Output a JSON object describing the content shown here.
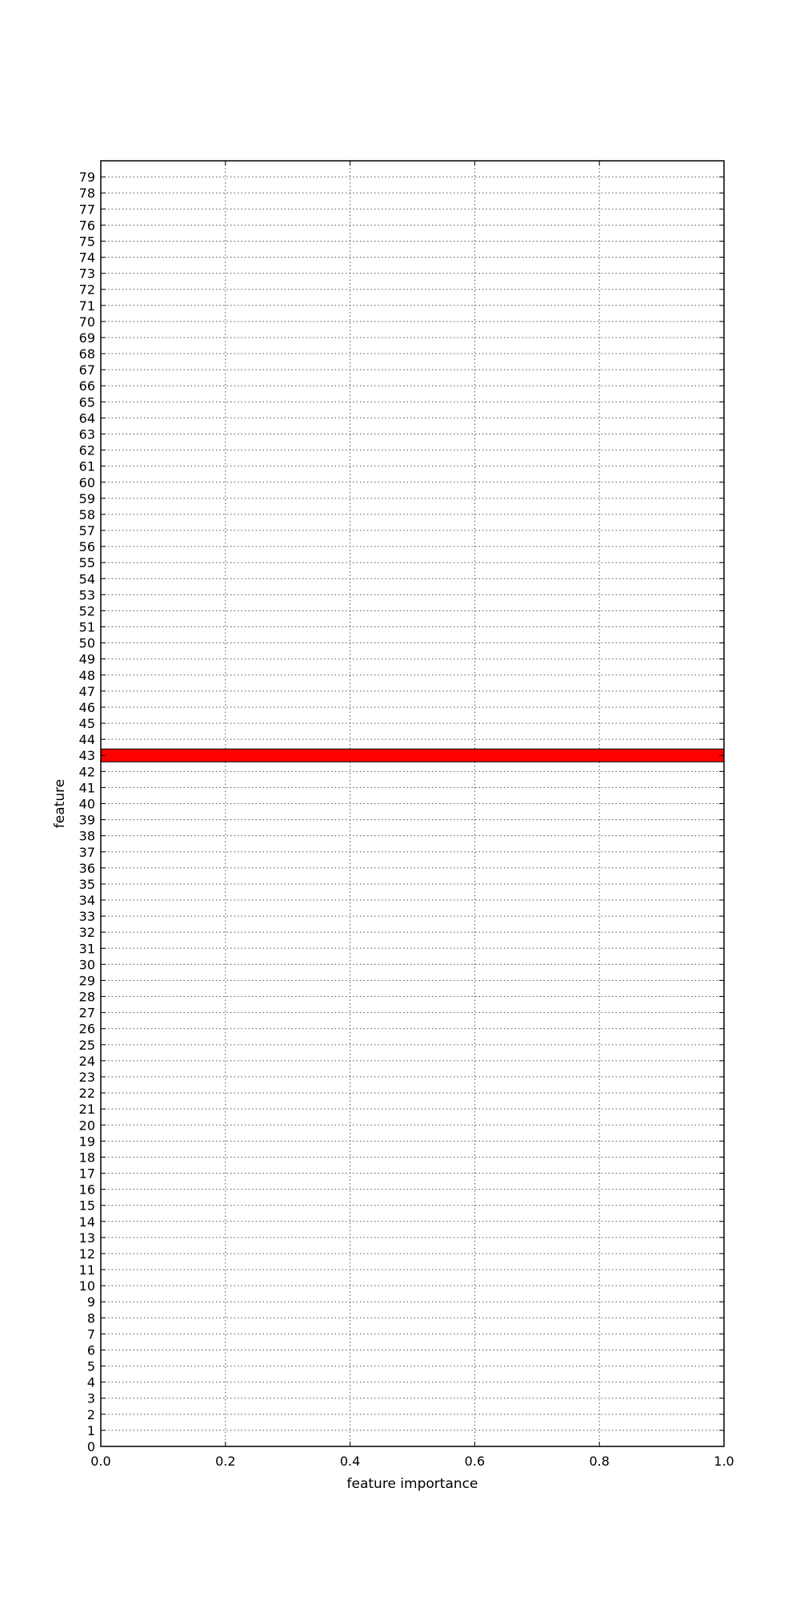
{
  "chart_data": {
    "type": "bar",
    "orientation": "horizontal",
    "xlabel": "feature importance",
    "ylabel": "feature",
    "xlim": [
      0.0,
      1.0
    ],
    "ylim": [
      0,
      80
    ],
    "xticks": [
      "0.0",
      "0.2",
      "0.4",
      "0.6",
      "0.8",
      "1.0"
    ],
    "xtick_values": [
      0.0,
      0.2,
      0.4,
      0.6,
      0.8,
      1.0
    ],
    "categories": [
      "0",
      "1",
      "2",
      "3",
      "4",
      "5",
      "6",
      "7",
      "8",
      "9",
      "10",
      "11",
      "12",
      "13",
      "14",
      "15",
      "16",
      "17",
      "18",
      "19",
      "20",
      "21",
      "22",
      "23",
      "24",
      "25",
      "26",
      "27",
      "28",
      "29",
      "30",
      "31",
      "32",
      "33",
      "34",
      "35",
      "36",
      "37",
      "38",
      "39",
      "40",
      "41",
      "42",
      "43",
      "44",
      "45",
      "46",
      "47",
      "48",
      "49",
      "50",
      "51",
      "52",
      "53",
      "54",
      "55",
      "56",
      "57",
      "58",
      "59",
      "60",
      "61",
      "62",
      "63",
      "64",
      "65",
      "66",
      "67",
      "68",
      "69",
      "70",
      "71",
      "72",
      "73",
      "74",
      "75",
      "76",
      "77",
      "78",
      "79"
    ],
    "values": [
      0,
      0,
      0,
      0,
      0,
      0,
      0,
      0,
      0,
      0,
      0,
      0,
      0,
      0,
      0,
      0,
      0,
      0,
      0,
      0,
      0,
      0,
      0,
      0,
      0,
      0,
      0,
      0,
      0,
      0,
      0,
      0,
      0,
      0,
      0,
      0,
      0,
      0,
      0,
      0,
      0,
      0,
      0,
      1.0,
      0,
      0,
      0,
      0,
      0,
      0,
      0,
      0,
      0,
      0,
      0,
      0,
      0,
      0,
      0,
      0,
      0,
      0,
      0,
      0,
      0,
      0,
      0,
      0,
      0,
      0,
      0,
      0,
      0,
      0,
      0,
      0,
      0,
      0,
      0,
      0
    ],
    "grid": true,
    "bar_color": "#ff0000",
    "bar_edge_color": "#000000"
  }
}
